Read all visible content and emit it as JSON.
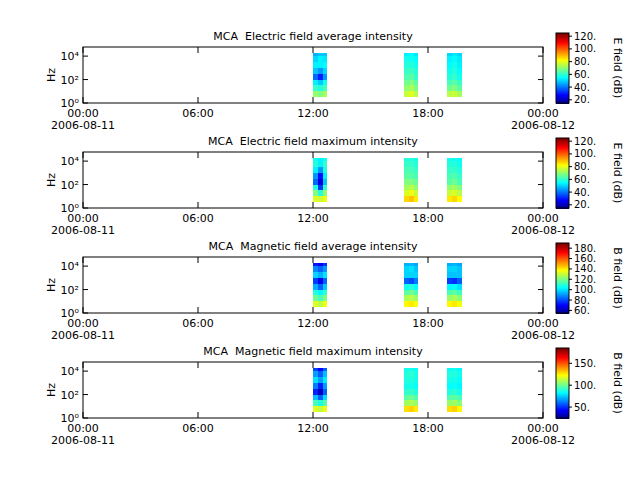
{
  "chart_data": [
    {
      "type": "heatmap",
      "title": "MCA  Electric field average intensity",
      "y_label": "Hz",
      "log": "y",
      "xlim": [
        "2006-08-11 00:00",
        "2006-08-12 00:00"
      ],
      "xticks": [
        {
          "value": "2006-08-11 00:00",
          "label": "00:00\n2006-08-11"
        },
        {
          "value": "2006-08-11 06:00",
          "label": "06:00"
        },
        {
          "value": "2006-08-11 12:00",
          "label": "12:00"
        },
        {
          "value": "2006-08-11 18:00",
          "label": "18:00"
        },
        {
          "value": "2006-08-12 00:00",
          "label": "00:00\n2006-08-12"
        }
      ],
      "ylim": [
        1,
        60000
      ],
      "yticks": [
        {
          "value": 1,
          "label": "10⁰"
        },
        {
          "value": 100,
          "label": "10²"
        },
        {
          "value": 10000,
          "label": "10⁴"
        }
      ],
      "columns": [
        {
          "start": "2006-08-11 12:00",
          "end": "2006-08-11 12:15"
        },
        {
          "start": "2006-08-11 12:15",
          "end": "2006-08-11 12:30"
        },
        {
          "start": "2006-08-11 12:30",
          "end": "2006-08-11 12:45"
        },
        {
          "start": "2006-08-11 16:45",
          "end": "2006-08-11 17:00"
        },
        {
          "start": "2006-08-11 17:00",
          "end": "2006-08-11 17:15"
        },
        {
          "start": "2006-08-11 17:15",
          "end": "2006-08-11 17:30"
        },
        {
          "start": "2006-08-11 19:00",
          "end": "2006-08-11 19:15"
        },
        {
          "start": "2006-08-11 19:15",
          "end": "2006-08-11 19:30"
        },
        {
          "start": "2006-08-11 19:30",
          "end": "2006-08-11 19:45"
        }
      ],
      "y_edges": [
        3.16,
        10,
        31.6,
        100,
        316,
        1000,
        3160,
        10000,
        20000
      ],
      "values": [
        [
          72,
          62,
          55,
          40,
          50,
          55,
          52,
          48
        ],
        [
          70,
          60,
          50,
          32,
          45,
          55,
          55,
          50
        ],
        [
          74,
          64,
          58,
          45,
          52,
          56,
          54,
          50
        ],
        [
          78,
          72,
          68,
          65,
          62,
          60,
          58,
          55
        ],
        [
          80,
          74,
          70,
          66,
          63,
          60,
          58,
          56
        ],
        [
          76,
          70,
          66,
          62,
          60,
          58,
          56,
          54
        ],
        [
          76,
          68,
          64,
          60,
          58,
          56,
          55,
          52
        ],
        [
          78,
          70,
          66,
          62,
          60,
          58,
          56,
          54
        ],
        [
          74,
          66,
          62,
          58,
          56,
          55,
          54,
          52
        ]
      ],
      "colorbar": {
        "label": "E field (dB)",
        "range": [
          15,
          125
        ],
        "ticks": [
          {
            "value": 20,
            "label": "20."
          },
          {
            "value": 40,
            "label": "40."
          },
          {
            "value": 60,
            "label": "60."
          },
          {
            "value": 80,
            "label": "80."
          },
          {
            "value": 100,
            "label": "100."
          },
          {
            "value": 120,
            "label": "120."
          }
        ]
      }
    },
    {
      "type": "heatmap",
      "title": "MCA  Electric field maximum intensity",
      "y_label": "Hz",
      "log": "y",
      "xlim": [
        "2006-08-11 00:00",
        "2006-08-12 00:00"
      ],
      "xticks": [
        {
          "value": "2006-08-11 00:00",
          "label": "00:00\n2006-08-11"
        },
        {
          "value": "2006-08-11 06:00",
          "label": "06:00"
        },
        {
          "value": "2006-08-11 12:00",
          "label": "12:00"
        },
        {
          "value": "2006-08-11 18:00",
          "label": "18:00"
        },
        {
          "value": "2006-08-12 00:00",
          "label": "00:00\n2006-08-12"
        }
      ],
      "ylim": [
        1,
        60000
      ],
      "yticks": [
        {
          "value": 1,
          "label": "10⁰"
        },
        {
          "value": 100,
          "label": "10²"
        },
        {
          "value": 10000,
          "label": "10⁴"
        }
      ],
      "columns": [
        {
          "start": "2006-08-11 12:00",
          "end": "2006-08-11 12:15"
        },
        {
          "start": "2006-08-11 12:15",
          "end": "2006-08-11 12:30"
        },
        {
          "start": "2006-08-11 12:30",
          "end": "2006-08-11 12:45"
        },
        {
          "start": "2006-08-11 16:45",
          "end": "2006-08-11 17:00"
        },
        {
          "start": "2006-08-11 17:00",
          "end": "2006-08-11 17:15"
        },
        {
          "start": "2006-08-11 17:15",
          "end": "2006-08-11 17:30"
        },
        {
          "start": "2006-08-11 19:00",
          "end": "2006-08-11 19:15"
        },
        {
          "start": "2006-08-11 19:15",
          "end": "2006-08-11 19:30"
        },
        {
          "start": "2006-08-11 19:30",
          "end": "2006-08-11 19:45"
        }
      ],
      "y_edges": [
        3.16,
        10,
        31.6,
        100,
        316,
        1000,
        3160,
        10000,
        20000
      ],
      "values": [
        [
          80,
          70,
          60,
          40,
          45,
          55,
          60,
          58
        ],
        [
          78,
          60,
          35,
          25,
          30,
          45,
          55,
          55
        ],
        [
          82,
          72,
          62,
          50,
          55,
          60,
          62,
          58
        ],
        [
          88,
          80,
          74,
          70,
          66,
          64,
          62,
          60
        ],
        [
          90,
          82,
          76,
          70,
          66,
          64,
          62,
          60
        ],
        [
          86,
          78,
          72,
          68,
          64,
          62,
          60,
          58
        ],
        [
          86,
          78,
          72,
          66,
          64,
          62,
          60,
          58
        ],
        [
          88,
          80,
          74,
          68,
          65,
          62,
          60,
          58
        ],
        [
          84,
          76,
          70,
          64,
          62,
          60,
          58,
          56
        ]
      ],
      "colorbar": {
        "label": "E field (dB)",
        "range": [
          15,
          125
        ],
        "ticks": [
          {
            "value": 20,
            "label": "20."
          },
          {
            "value": 40,
            "label": "40."
          },
          {
            "value": 60,
            "label": "60."
          },
          {
            "value": 80,
            "label": "80."
          },
          {
            "value": 100,
            "label": "100."
          },
          {
            "value": 120,
            "label": "120."
          }
        ]
      }
    },
    {
      "type": "heatmap",
      "title": "MCA  Magnetic field average intensity",
      "y_label": "Hz",
      "log": "y",
      "xlim": [
        "2006-08-11 00:00",
        "2006-08-12 00:00"
      ],
      "xticks": [
        {
          "value": "2006-08-11 00:00",
          "label": "00:00\n2006-08-11"
        },
        {
          "value": "2006-08-11 06:00",
          "label": "06:00"
        },
        {
          "value": "2006-08-11 12:00",
          "label": "12:00"
        },
        {
          "value": "2006-08-11 18:00",
          "label": "18:00"
        },
        {
          "value": "2006-08-12 00:00",
          "label": "00:00\n2006-08-12"
        }
      ],
      "ylim": [
        1,
        60000
      ],
      "yticks": [
        {
          "value": 1,
          "label": "10⁰"
        },
        {
          "value": 100,
          "label": "10²"
        },
        {
          "value": 10000,
          "label": "10⁴"
        }
      ],
      "columns": [
        {
          "start": "2006-08-11 12:00",
          "end": "2006-08-11 12:15"
        },
        {
          "start": "2006-08-11 12:15",
          "end": "2006-08-11 12:30"
        },
        {
          "start": "2006-08-11 12:30",
          "end": "2006-08-11 12:45"
        },
        {
          "start": "2006-08-11 16:45",
          "end": "2006-08-11 17:00"
        },
        {
          "start": "2006-08-11 17:00",
          "end": "2006-08-11 17:15"
        },
        {
          "start": "2006-08-11 17:15",
          "end": "2006-08-11 17:30"
        },
        {
          "start": "2006-08-11 19:00",
          "end": "2006-08-11 19:15"
        },
        {
          "start": "2006-08-11 19:15",
          "end": "2006-08-11 19:30"
        },
        {
          "start": "2006-08-11 19:30",
          "end": "2006-08-11 19:45"
        }
      ],
      "y_edges": [
        3.16,
        10,
        31.6,
        100,
        316,
        1000,
        3160,
        10000,
        20000
      ],
      "values": [
        [
          135,
          120,
          110,
          95,
          80,
          100,
          90,
          75
        ],
        [
          130,
          115,
          105,
          85,
          70,
          95,
          85,
          70
        ],
        [
          138,
          122,
          112,
          98,
          85,
          102,
          92,
          78
        ],
        [
          140,
          128,
          118,
          108,
          85,
          100,
          100,
          95
        ],
        [
          142,
          130,
          120,
          110,
          82,
          100,
          102,
          96
        ],
        [
          138,
          126,
          116,
          106,
          88,
          100,
          98,
          94
        ],
        [
          140,
          126,
          116,
          105,
          80,
          98,
          100,
          95
        ],
        [
          142,
          128,
          118,
          106,
          78,
          98,
          100,
          96
        ],
        [
          138,
          124,
          114,
          102,
          84,
          98,
          98,
          94
        ]
      ],
      "colorbar": {
        "label": "B field (dB)",
        "range": [
          55,
          190
        ],
        "ticks": [
          {
            "value": 60,
            "label": "60."
          },
          {
            "value": 80,
            "label": "80."
          },
          {
            "value": 100,
            "label": "100."
          },
          {
            "value": 120,
            "label": "120."
          },
          {
            "value": 140,
            "label": "140."
          },
          {
            "value": 160,
            "label": "160."
          },
          {
            "value": 180,
            "label": "180."
          }
        ]
      }
    },
    {
      "type": "heatmap",
      "title": "MCA  Magnetic field maximum intensity",
      "y_label": "Hz",
      "log": "y",
      "xlim": [
        "2006-08-11 00:00",
        "2006-08-12 00:00"
      ],
      "xticks": [
        {
          "value": "2006-08-11 00:00",
          "label": "00:00\n2006-08-11"
        },
        {
          "value": "2006-08-11 06:00",
          "label": "06:00"
        },
        {
          "value": "2006-08-11 12:00",
          "label": "12:00"
        },
        {
          "value": "2006-08-11 18:00",
          "label": "18:00"
        },
        {
          "value": "2006-08-12 00:00",
          "label": "00:00\n2006-08-12"
        }
      ],
      "ylim": [
        1,
        60000
      ],
      "yticks": [
        {
          "value": 1,
          "label": "10⁰"
        },
        {
          "value": 100,
          "label": "10²"
        },
        {
          "value": 10000,
          "label": "10⁴"
        }
      ],
      "columns": [
        {
          "start": "2006-08-11 12:00",
          "end": "2006-08-11 12:15"
        },
        {
          "start": "2006-08-11 12:15",
          "end": "2006-08-11 12:30"
        },
        {
          "start": "2006-08-11 12:30",
          "end": "2006-08-11 12:45"
        },
        {
          "start": "2006-08-11 16:45",
          "end": "2006-08-11 17:00"
        },
        {
          "start": "2006-08-11 17:00",
          "end": "2006-08-11 17:15"
        },
        {
          "start": "2006-08-11 17:15",
          "end": "2006-08-11 17:30"
        },
        {
          "start": "2006-08-11 19:00",
          "end": "2006-08-11 19:15"
        },
        {
          "start": "2006-08-11 19:15",
          "end": "2006-08-11 19:30"
        },
        {
          "start": "2006-08-11 19:30",
          "end": "2006-08-11 19:45"
        }
      ],
      "y_edges": [
        3.16,
        10,
        31.6,
        100,
        316,
        1000,
        3160,
        10000,
        20000
      ],
      "values": [
        [
          120,
          95,
          75,
          50,
          65,
          80,
          70,
          55
        ],
        [
          115,
          90,
          60,
          35,
          50,
          70,
          60,
          45
        ],
        [
          122,
          98,
          80,
          60,
          70,
          82,
          75,
          60
        ],
        [
          130,
          110,
          100,
          92,
          88,
          90,
          90,
          88
        ],
        [
          132,
          112,
          102,
          94,
          88,
          90,
          92,
          88
        ],
        [
          128,
          108,
          98,
          90,
          86,
          88,
          88,
          86
        ],
        [
          130,
          108,
          98,
          90,
          85,
          88,
          90,
          86
        ],
        [
          132,
          110,
          100,
          92,
          86,
          88,
          90,
          88
        ],
        [
          126,
          106,
          96,
          88,
          84,
          86,
          88,
          84
        ]
      ],
      "colorbar": {
        "label": "B field (dB)",
        "range": [
          25,
          185
        ],
        "ticks": [
          {
            "value": 50,
            "label": "50."
          },
          {
            "value": 100,
            "label": "100."
          },
          {
            "value": 150,
            "label": "150."
          }
        ]
      }
    }
  ]
}
